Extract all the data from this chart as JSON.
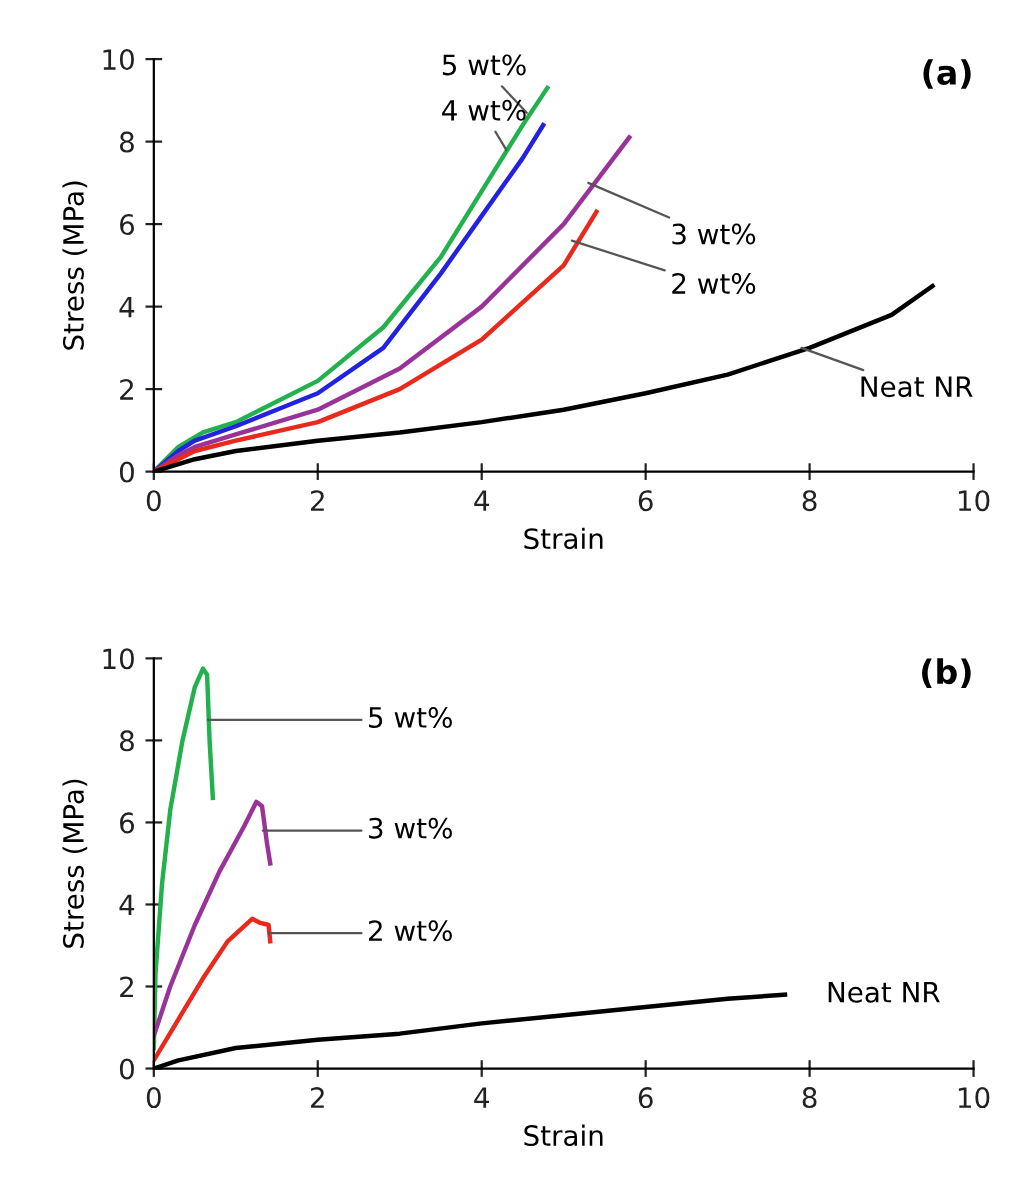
{
  "chart_data": [
    {
      "type": "line",
      "title": "(a)",
      "xlabel": "Strain",
      "ylabel": "Stress (MPa)",
      "xlim": [
        0,
        10
      ],
      "ylim": [
        0,
        10
      ],
      "xticks": [
        0,
        2,
        4,
        6,
        8,
        10
      ],
      "yticks": [
        0,
        2,
        4,
        6,
        8,
        10
      ],
      "grid": false,
      "legend": false,
      "marker": "none",
      "line_style": "solid",
      "series": [
        {
          "name": "5 wt%",
          "color": "#22b14c",
          "x": [
            0,
            0.3,
            0.6,
            1,
            2,
            2.8,
            3.5,
            4,
            4.5,
            4.8
          ],
          "values": [
            0,
            0.6,
            0.95,
            1.2,
            2.2,
            3.5,
            5.2,
            6.8,
            8.4,
            9.3
          ]
        },
        {
          "name": "4 wt%",
          "color": "#2222e0",
          "x": [
            0,
            0.3,
            0.5,
            1,
            2,
            2.8,
            3.5,
            4,
            4.5,
            4.75
          ],
          "values": [
            0,
            0.5,
            0.75,
            1.1,
            1.9,
            3.0,
            4.8,
            6.2,
            7.6,
            8.4
          ]
        },
        {
          "name": "3 wt%",
          "color": "#993399",
          "x": [
            0,
            0.3,
            0.5,
            1,
            2,
            3,
            4,
            5,
            5.8
          ],
          "values": [
            0,
            0.4,
            0.6,
            0.9,
            1.5,
            2.5,
            4.0,
            6.0,
            8.1
          ]
        },
        {
          "name": "2 wt%",
          "color": "#e8291c",
          "x": [
            0,
            0.3,
            0.5,
            1,
            2,
            3,
            4,
            5,
            5.4
          ],
          "values": [
            0,
            0.3,
            0.5,
            0.75,
            1.2,
            2.0,
            3.2,
            5.0,
            6.3
          ]
        },
        {
          "name": "Neat NR",
          "color": "#000000",
          "x": [
            0,
            0.5,
            1,
            2,
            3,
            4,
            5,
            6,
            7,
            8,
            9,
            9.5
          ],
          "values": [
            0,
            0.3,
            0.5,
            0.75,
            0.95,
            1.2,
            1.5,
            1.9,
            2.35,
            3.0,
            3.8,
            4.5
          ]
        }
      ]
    },
    {
      "type": "line",
      "title": "(b)",
      "xlabel": "Strain",
      "ylabel": "Stress (MPa)",
      "xlim": [
        0,
        10
      ],
      "ylim": [
        0,
        10
      ],
      "xticks": [
        0,
        2,
        4,
        6,
        8,
        10
      ],
      "yticks": [
        0,
        2,
        4,
        6,
        8,
        10
      ],
      "grid": false,
      "legend": false,
      "marker": "none",
      "line_style": "solid",
      "series": [
        {
          "name": "5 wt%",
          "color": "#22b14c",
          "x": [
            0,
            0.02,
            0.1,
            0.2,
            0.35,
            0.5,
            0.6,
            0.65,
            0.68,
            0.72
          ],
          "values": [
            0.5,
            2.3,
            4.5,
            6.3,
            8.0,
            9.3,
            9.75,
            9.6,
            8.0,
            6.6
          ]
        },
        {
          "name": "3 wt%",
          "color": "#993399",
          "x": [
            0,
            0.2,
            0.5,
            0.8,
            1.1,
            1.25,
            1.32,
            1.38,
            1.42
          ],
          "values": [
            0.8,
            2.0,
            3.5,
            4.8,
            5.9,
            6.5,
            6.4,
            5.5,
            5.0
          ]
        },
        {
          "name": "2 wt%",
          "color": "#e8291c",
          "x": [
            0,
            0.3,
            0.6,
            0.9,
            1.2,
            1.3,
            1.4,
            1.42
          ],
          "values": [
            0.2,
            1.2,
            2.2,
            3.1,
            3.65,
            3.55,
            3.5,
            3.1
          ]
        },
        {
          "name": "Neat NR",
          "color": "#000000",
          "x": [
            0,
            0.3,
            1,
            2,
            3,
            4,
            5,
            6,
            7,
            7.7
          ],
          "values": [
            0,
            0.2,
            0.5,
            0.7,
            0.85,
            1.1,
            1.3,
            1.5,
            1.7,
            1.8
          ]
        }
      ]
    }
  ]
}
